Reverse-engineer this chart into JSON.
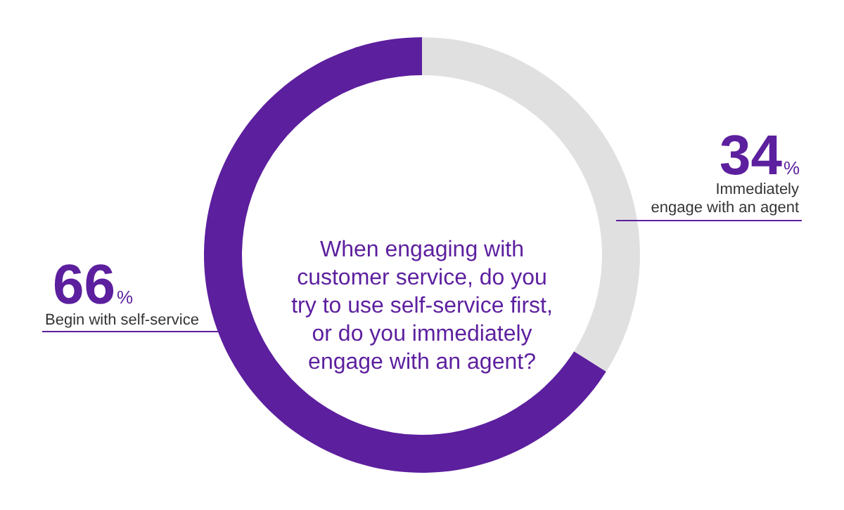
{
  "chart_data": {
    "type": "donut",
    "title": "When engaging with\ncustomer service, do you\ntry to use self-service first,\nor do you immediately\nengage with an agent?",
    "categories": [
      "Immediately engage with an agent",
      "Begin with self-service"
    ],
    "values": [
      34,
      66
    ],
    "colors": [
      "#e0e0e0",
      "#5c1f9e"
    ],
    "value_labels": [
      "34%",
      "66%"
    ]
  }
}
